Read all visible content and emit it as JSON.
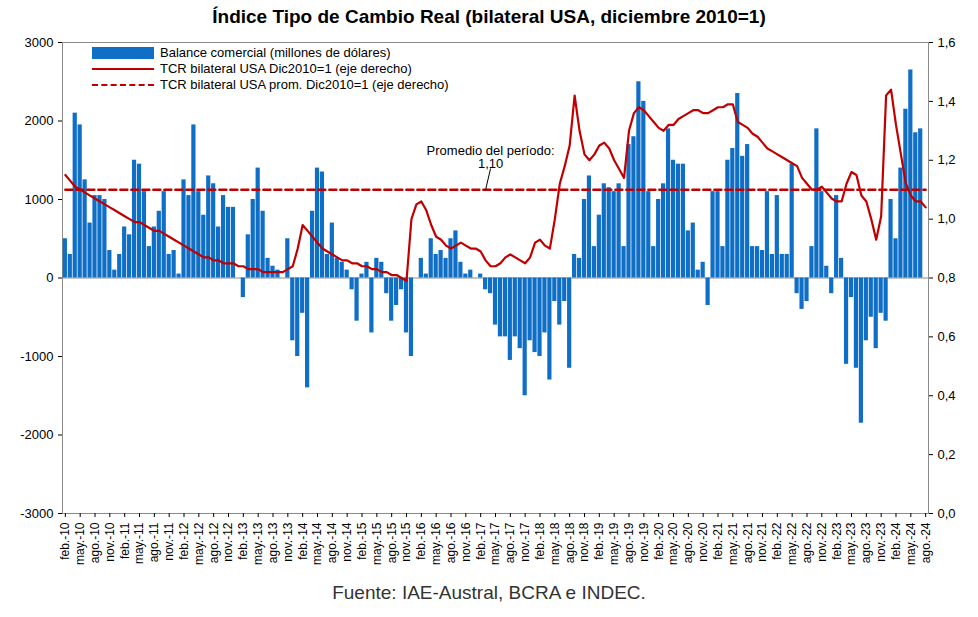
{
  "chart_data": {
    "type": "bar",
    "title": "Índice Tipo de Cambio Real (bilateral USA, diciembre 2010=1)",
    "caption": "Fuente: IAE-Austral, BCRA e INDEC.",
    "annotations": [
      "Promedio del período:",
      "1,10"
    ],
    "categories": [
      "feb.-10",
      null,
      null,
      "may.-10",
      null,
      null,
      "ago.-10",
      null,
      null,
      "nov.-10",
      null,
      null,
      "feb.-11",
      null,
      null,
      "may.-11",
      null,
      null,
      "ago.-11",
      null,
      null,
      "nov.-11",
      null,
      null,
      "feb.-12",
      null,
      null,
      "may.-12",
      null,
      null,
      "ago.-12",
      null,
      null,
      "nov.-12",
      null,
      null,
      "feb.-13",
      null,
      null,
      "may.-13",
      null,
      null,
      "ago.-13",
      null,
      null,
      "nov.-13",
      null,
      null,
      "feb.-14",
      null,
      null,
      "may.-14",
      null,
      null,
      "ago.-14",
      null,
      null,
      "nov.-14",
      null,
      null,
      "feb.-15",
      null,
      null,
      "may.-15",
      null,
      null,
      "ago.-15",
      null,
      null,
      "nov.-15",
      null,
      null,
      "feb.-16",
      null,
      null,
      "may.-16",
      null,
      null,
      "ago.-16",
      null,
      null,
      "nov.-16",
      null,
      null,
      "feb.-17",
      null,
      null,
      "may.-17",
      null,
      null,
      "ago.-17",
      null,
      null,
      "nov.-17",
      null,
      null,
      "feb.-18",
      null,
      null,
      "may.-18",
      null,
      null,
      "ago.-18",
      null,
      null,
      "nov.-18",
      null,
      null,
      "feb.-19",
      null,
      null,
      "may.-19",
      null,
      null,
      "ago.-19",
      null,
      null,
      "nov.-19",
      null,
      null,
      "feb.-20",
      null,
      null,
      "may.-20",
      null,
      null,
      "ago.-20",
      null,
      null,
      "nov.-20",
      null,
      null,
      "feb.-21",
      null,
      null,
      "may.-21",
      null,
      null,
      "ago.-21",
      null,
      null,
      "nov.-21",
      null,
      null,
      "feb.-22",
      null,
      null,
      "may.-22",
      null,
      null,
      "ago.-22",
      null,
      null,
      "nov.-22",
      null,
      null,
      "feb.-23",
      null,
      null,
      "may.-23",
      null,
      null,
      "ago.-23",
      null,
      null,
      "nov.-23",
      null,
      null,
      "feb.-24",
      null,
      null,
      "may.-24",
      null,
      null,
      "ago.-24"
    ],
    "series": [
      {
        "name": "Balance comercial (millones de dólares)",
        "type": "bar",
        "color": "#0f6fc6",
        "values": [
          500,
          300,
          2100,
          1950,
          1250,
          700,
          1050,
          1050,
          1000,
          350,
          100,
          300,
          650,
          550,
          1500,
          1450,
          1100,
          400,
          650,
          850,
          1100,
          300,
          350,
          50,
          1250,
          1050,
          1950,
          1100,
          800,
          1300,
          1200,
          650,
          1050,
          900,
          900,
          0,
          -250,
          550,
          1000,
          1400,
          850,
          250,
          150,
          100,
          0,
          500,
          -800,
          -1000,
          -450,
          -1400,
          850,
          1400,
          1350,
          300,
          700,
          250,
          200,
          100,
          -150,
          -550,
          50,
          200,
          -700,
          250,
          200,
          -200,
          -550,
          -350,
          -150,
          -700,
          -1000,
          0,
          250,
          50,
          500,
          300,
          350,
          250,
          500,
          600,
          200,
          50,
          100,
          0,
          50,
          -150,
          -200,
          -600,
          -750,
          -750,
          -1050,
          -750,
          -900,
          -1500,
          -800,
          -950,
          -1000,
          -700,
          -1300,
          -300,
          -600,
          -300,
          -1150,
          300,
          250,
          1000,
          1300,
          400,
          800,
          1200,
          1150,
          1100,
          1200,
          400,
          1700,
          1800,
          2500,
          2250,
          1100,
          400,
          1000,
          1200,
          1900,
          1500,
          1450,
          1450,
          600,
          700,
          100,
          200,
          -350,
          1100,
          1100,
          400,
          1500,
          1650,
          2350,
          1550,
          1700,
          400,
          400,
          350,
          1100,
          300,
          1050,
          300,
          300,
          1450,
          -200,
          -400,
          -300,
          400,
          1900,
          1100,
          150,
          -200,
          1050,
          250,
          -1100,
          -250,
          -1150,
          -1850,
          -800,
          -500,
          -900,
          -450,
          -550,
          1000,
          500,
          1400,
          2150,
          2650,
          1850,
          1900,
          null
        ]
      },
      {
        "name": "TCR bilateral USA Dic2010=1 (eje derecho)",
        "type": "line",
        "axis": "y2",
        "color": "#c00000",
        "line_style": "solid",
        "values": [
          1.15,
          1.13,
          1.11,
          1.1,
          1.09,
          1.08,
          1.07,
          1.06,
          1.05,
          1.04,
          1.03,
          1.02,
          1.01,
          1.0,
          0.99,
          0.99,
          0.98,
          0.97,
          0.96,
          0.96,
          0.95,
          0.94,
          0.93,
          0.92,
          0.91,
          0.9,
          0.89,
          0.88,
          0.87,
          0.87,
          0.86,
          0.86,
          0.85,
          0.85,
          0.85,
          0.84,
          0.84,
          0.83,
          0.83,
          0.83,
          0.82,
          0.82,
          0.82,
          0.82,
          0.82,
          0.83,
          0.84,
          0.9,
          0.98,
          0.96,
          0.94,
          0.92,
          0.9,
          0.89,
          0.88,
          0.87,
          0.86,
          0.86,
          0.85,
          0.85,
          0.84,
          0.84,
          0.83,
          0.83,
          0.82,
          0.82,
          0.81,
          0.81,
          0.8,
          0.79,
          1.0,
          1.05,
          1.06,
          1.03,
          0.98,
          0.94,
          0.93,
          0.91,
          0.9,
          0.91,
          0.92,
          0.91,
          0.9,
          0.9,
          0.89,
          0.86,
          0.84,
          0.84,
          0.85,
          0.87,
          0.88,
          0.87,
          0.86,
          0.85,
          0.87,
          0.92,
          0.93,
          0.91,
          0.9,
          1.0,
          1.12,
          1.18,
          1.25,
          1.42,
          1.3,
          1.22,
          1.2,
          1.22,
          1.25,
          1.26,
          1.24,
          1.2,
          1.17,
          1.14,
          1.3,
          1.36,
          1.38,
          1.37,
          1.35,
          1.33,
          1.31,
          1.3,
          1.32,
          1.32,
          1.34,
          1.35,
          1.36,
          1.37,
          1.37,
          1.36,
          1.36,
          1.37,
          1.38,
          1.38,
          1.39,
          1.39,
          1.33,
          1.32,
          1.31,
          1.29,
          1.28,
          1.26,
          1.24,
          1.23,
          1.22,
          1.21,
          1.2,
          1.19,
          1.18,
          1.14,
          1.12,
          1.1,
          1.1,
          1.11,
          1.09,
          1.07,
          1.06,
          1.06,
          1.12,
          1.16,
          1.15,
          1.08,
          1.06,
          1.0,
          0.93,
          1.01,
          1.42,
          1.44,
          1.32,
          1.22,
          1.12,
          1.08,
          1.06,
          1.06,
          1.04
        ]
      },
      {
        "name": "TCR bilateral USA prom. Dic2010=1 (eje derecho)",
        "type": "line",
        "axis": "y2",
        "color": "#c00000",
        "line_style": "dashed",
        "values": [
          1.1,
          1.1,
          1.1,
          1.1,
          1.1,
          1.1,
          1.1,
          1.1,
          1.1,
          1.1,
          1.1,
          1.1,
          1.1,
          1.1,
          1.1,
          1.1,
          1.1,
          1.1,
          1.1,
          1.1,
          1.1,
          1.1,
          1.1,
          1.1,
          1.1,
          1.1,
          1.1,
          1.1,
          1.1,
          1.1,
          1.1,
          1.1,
          1.1,
          1.1,
          1.1,
          1.1,
          1.1,
          1.1,
          1.1,
          1.1,
          1.1,
          1.1,
          1.1,
          1.1,
          1.1,
          1.1,
          1.1,
          1.1,
          1.1,
          1.1,
          1.1,
          1.1,
          1.1,
          1.1,
          1.1,
          1.1,
          1.1,
          1.1,
          1.1,
          1.1,
          1.1,
          1.1,
          1.1,
          1.1,
          1.1,
          1.1,
          1.1,
          1.1,
          1.1,
          1.1,
          1.1,
          1.1,
          1.1,
          1.1,
          1.1,
          1.1,
          1.1,
          1.1,
          1.1,
          1.1,
          1.1,
          1.1,
          1.1,
          1.1,
          1.1,
          1.1,
          1.1,
          1.1,
          1.1,
          1.1,
          1.1,
          1.1,
          1.1,
          1.1,
          1.1,
          1.1,
          1.1,
          1.1,
          1.1,
          1.1,
          1.1,
          1.1,
          1.1,
          1.1,
          1.1,
          1.1,
          1.1,
          1.1,
          1.1,
          1.1,
          1.1,
          1.1,
          1.1,
          1.1,
          1.1,
          1.1,
          1.1,
          1.1,
          1.1,
          1.1,
          1.1,
          1.1,
          1.1,
          1.1,
          1.1,
          1.1,
          1.1,
          1.1,
          1.1,
          1.1,
          1.1,
          1.1,
          1.1,
          1.1,
          1.1,
          1.1,
          1.1,
          1.1,
          1.1,
          1.1,
          1.1,
          1.1,
          1.1,
          1.1,
          1.1,
          1.1,
          1.1,
          1.1,
          1.1,
          1.1,
          1.1,
          1.1,
          1.1,
          1.1,
          1.1,
          1.1,
          1.1,
          1.1,
          1.1,
          1.1,
          1.1,
          1.1,
          1.1,
          1.1,
          1.1,
          1.1,
          1.1,
          1.1,
          1.1,
          1.1,
          1.1,
          1.1,
          1.1,
          1.1,
          1.1
        ]
      }
    ],
    "ylim": [
      -3000,
      3000
    ],
    "yticks": [
      -3000,
      -2000,
      -1000,
      0,
      1000,
      2000,
      3000
    ],
    "y2lim": [
      0,
      1.6
    ],
    "y2ticks": [
      {
        "value": 0,
        "label": "0,0"
      },
      {
        "value": 0.2,
        "label": "0,2"
      },
      {
        "value": 0.4,
        "label": "0,4"
      },
      {
        "value": 0.6,
        "label": "0,6"
      },
      {
        "value": 0.8,
        "label": "0,8"
      },
      {
        "value": 1.0,
        "label": "1,0"
      },
      {
        "value": 1.2,
        "label": "1,2"
      },
      {
        "value": 1.4,
        "label": "1,4"
      },
      {
        "value": 1.6,
        "label": "1,6"
      }
    ],
    "grid": false,
    "legend": "top-left"
  }
}
